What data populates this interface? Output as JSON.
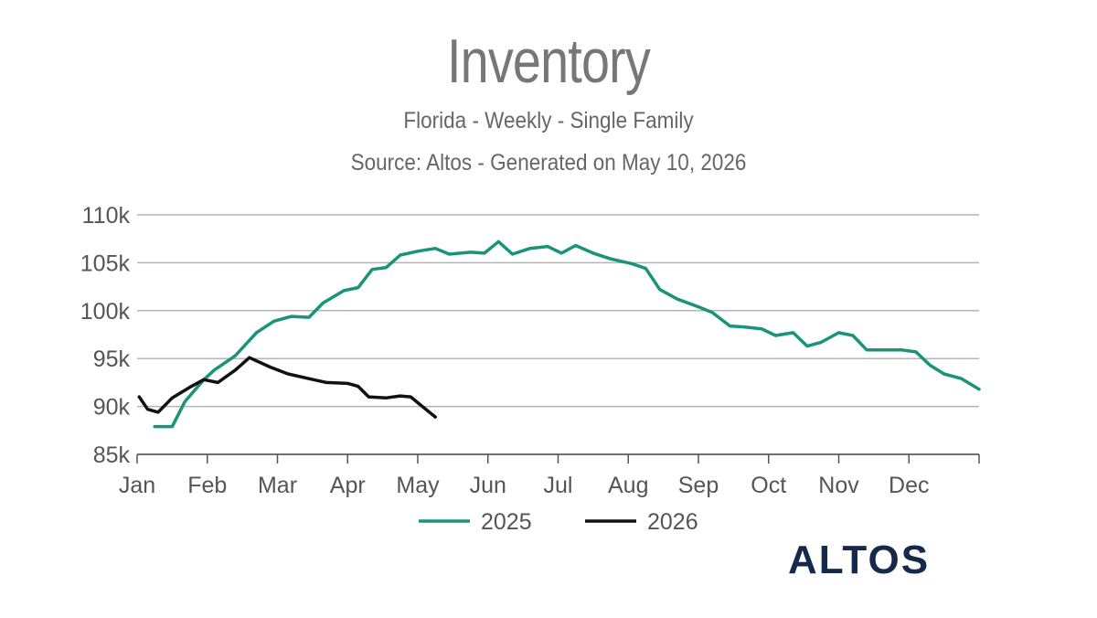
{
  "chart_data": {
    "type": "line",
    "title": "Inventory",
    "subtitle": "Florida - Weekly - Single Family",
    "source": "Source: Altos - Generated on May 10, 2026",
    "x_unit": "month index (0 = Jan 1, 12 = Dec 31)",
    "x_ticks": [
      "Jan",
      "Feb",
      "Mar",
      "Apr",
      "May",
      "Jun",
      "Jul",
      "Aug",
      "Sep",
      "Oct",
      "Nov",
      "Dec"
    ],
    "y_ticks": [
      "85k",
      "90k",
      "95k",
      "100k",
      "105k",
      "110k"
    ],
    "xlim": [
      0,
      12
    ],
    "ylim": [
      85000,
      110000
    ],
    "grid": true,
    "legend_position": "bottom-center",
    "series": [
      {
        "name": "2025",
        "color": "#1a9478",
        "points": [
          [
            0.25,
            87900
          ],
          [
            0.5,
            87900
          ],
          [
            0.68,
            90500
          ],
          [
            0.95,
            92800
          ],
          [
            1.1,
            93800
          ],
          [
            1.4,
            95300
          ],
          [
            1.7,
            97700
          ],
          [
            1.95,
            98900
          ],
          [
            2.2,
            99400
          ],
          [
            2.45,
            99300
          ],
          [
            2.65,
            100800
          ],
          [
            2.95,
            102100
          ],
          [
            3.15,
            102400
          ],
          [
            3.35,
            104300
          ],
          [
            3.55,
            104500
          ],
          [
            3.75,
            105800
          ],
          [
            4.0,
            106200
          ],
          [
            4.25,
            106500
          ],
          [
            4.45,
            105900
          ],
          [
            4.75,
            106100
          ],
          [
            4.95,
            106000
          ],
          [
            5.15,
            107200
          ],
          [
            5.35,
            105900
          ],
          [
            5.6,
            106500
          ],
          [
            5.85,
            106700
          ],
          [
            6.05,
            106000
          ],
          [
            6.25,
            106800
          ],
          [
            6.5,
            106000
          ],
          [
            6.75,
            105400
          ],
          [
            7.05,
            104900
          ],
          [
            7.25,
            104400
          ],
          [
            7.45,
            102200
          ],
          [
            7.7,
            101200
          ],
          [
            8.0,
            100400
          ],
          [
            8.2,
            99800
          ],
          [
            8.45,
            98400
          ],
          [
            8.65,
            98300
          ],
          [
            8.9,
            98100
          ],
          [
            9.1,
            97400
          ],
          [
            9.35,
            97700
          ],
          [
            9.55,
            96300
          ],
          [
            9.75,
            96700
          ],
          [
            10.0,
            97700
          ],
          [
            10.2,
            97400
          ],
          [
            10.4,
            95900
          ],
          [
            10.6,
            95900
          ],
          [
            10.9,
            95900
          ],
          [
            11.1,
            95700
          ],
          [
            11.3,
            94300
          ],
          [
            11.5,
            93400
          ],
          [
            11.75,
            92900
          ],
          [
            12.0,
            91800
          ]
        ]
      },
      {
        "name": "2026",
        "color": "#111111",
        "points": [
          [
            0.03,
            91000
          ],
          [
            0.15,
            89700
          ],
          [
            0.3,
            89400
          ],
          [
            0.5,
            90900
          ],
          [
            0.75,
            92000
          ],
          [
            0.95,
            92800
          ],
          [
            1.15,
            92500
          ],
          [
            1.4,
            93800
          ],
          [
            1.6,
            95100
          ],
          [
            1.9,
            94100
          ],
          [
            2.15,
            93400
          ],
          [
            2.45,
            92900
          ],
          [
            2.7,
            92500
          ],
          [
            3.0,
            92400
          ],
          [
            3.15,
            92100
          ],
          [
            3.3,
            91000
          ],
          [
            3.55,
            90900
          ],
          [
            3.75,
            91100
          ],
          [
            3.9,
            91000
          ],
          [
            4.05,
            90100
          ],
          [
            4.25,
            88900
          ]
        ]
      }
    ]
  },
  "logo_text": "ALTOS"
}
